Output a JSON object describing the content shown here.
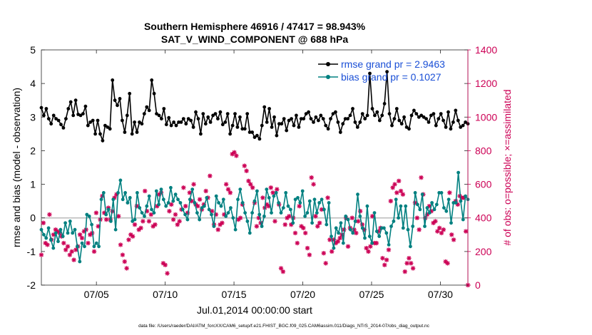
{
  "colors": {
    "rmse": "#000000",
    "bias": "#008080",
    "obs": "#cc0055",
    "zero_line": "#bbbbbb",
    "legend_text": "#1a4fd6"
  },
  "chart_data": {
    "type": "line",
    "title_line1": "Southern Hemisphere 46916 / 47417 = 98.943%",
    "title_line2": "SAT_V_WIND_COMPONENT @ 688 hPa",
    "xlabel": "Jul.01,2014 00:00:00 start",
    "ylabel_left": "rmse and bias (model - observation)",
    "ylabel_right": "# of obs: o=possible; ×=assimilated",
    "footer": "data file: /Users/raeder/DAI/ATM_forcXX/CAM6_setup/f.e21.FHIST_BGC.f09_025.CAM6assim.011/Diags_NTrS_2014-07/obs_diag_output.nc",
    "xlim": [
      1,
      32
    ],
    "ylim_left": [
      -2,
      5
    ],
    "ylim_right": [
      0,
      1400
    ],
    "xticks": [
      5,
      10,
      15,
      20,
      25,
      30
    ],
    "xtick_labels": [
      "07/05",
      "07/10",
      "07/15",
      "07/20",
      "07/25",
      "07/30"
    ],
    "yticks_left": [
      -2,
      -1,
      0,
      1,
      2,
      3,
      4,
      5
    ],
    "yticks_right": [
      0,
      200,
      400,
      600,
      800,
      1000,
      1200,
      1400
    ],
    "legend": [
      {
        "key": "rmse",
        "label": "rmse grand pr = 2.9463"
      },
      {
        "key": "bias",
        "label": "bias grand pr = 0.1027"
      }
    ],
    "rmse": [
      3.28,
      3.05,
      3.25,
      2.95,
      2.8,
      3.05,
      2.95,
      2.9,
      2.78,
      2.68,
      2.95,
      3.25,
      3.45,
      3.05,
      3.5,
      3.08,
      3.05,
      3.1,
      3.32,
      2.75,
      2.85,
      2.9,
      2.5,
      2.9,
      2.5,
      2.3,
      2.75,
      2.7,
      2.65,
      4.1,
      3.5,
      3.35,
      3.55,
      2.9,
      2.55,
      3.05,
      3.7,
      2.5,
      2.85,
      2.55,
      2.85,
      2.8,
      3.1,
      3.3,
      3.2,
      4.1,
      3.7,
      3.1,
      3.05,
      2.95,
      3.25,
      2.78,
      2.98,
      2.75,
      2.85,
      2.75,
      2.85,
      2.85,
      2.95,
      2.8,
      2.95,
      2.9,
      2.7,
      3.15,
      2.95,
      2.5,
      3.1,
      2.8,
      3.0,
      2.85,
      3.05,
      3.1,
      2.95,
      3.15,
      2.78,
      2.85,
      3.1,
      2.5,
      2.75,
      3.1,
      2.7,
      3.0,
      2.65,
      2.65,
      3.1,
      2.55,
      2.55,
      2.4,
      2.45,
      2.35,
      2.75,
      3.3,
      2.85,
      3.25,
      2.7,
      3.0,
      2.45,
      2.8,
      2.8,
      2.95,
      2.6,
      2.9,
      2.95,
      2.75,
      3.05,
      2.7,
      2.95,
      2.95,
      3.1,
      3.15,
      2.95,
      2.85,
      3.0,
      2.9,
      3.05,
      2.95,
      2.75,
      2.65,
      2.95,
      3.1,
      3.15,
      2.85,
      2.55,
      2.8,
      2.95,
      2.95,
      3.05,
      3.25,
      2.85,
      2.7,
      2.85,
      3.1,
      2.95,
      3.05,
      4.3,
      3.25,
      3.05,
      3.15,
      2.9,
      3.05,
      3.4,
      4.35,
      3.1,
      2.75,
      2.95,
      3.25,
      2.9,
      2.8,
      3.0,
      2.7,
      2.65,
      3.05,
      3.2,
      3.1,
      3.0,
      3.05,
      3.0,
      2.95,
      2.85,
      3.05,
      3.1,
      2.75,
      2.95,
      3.1,
      2.9,
      2.7,
      3.15,
      2.65,
      2.85,
      3.2,
      2.9,
      2.7,
      2.75,
      2.85,
      2.8
    ],
    "bias": [
      -0.35,
      -0.5,
      -0.6,
      -0.3,
      -0.65,
      -0.9,
      -0.45,
      -0.7,
      -0.35,
      -0.55,
      -0.15,
      -0.45,
      -0.1,
      -0.45,
      -0.35,
      -0.85,
      -1.3,
      -0.75,
      -0.85,
      0.1,
      0.05,
      -0.2,
      -0.85,
      -0.75,
      -0.85,
      0.55,
      0.75,
      0.1,
      0.25,
      -0.1,
      0.55,
      -0.35,
      0.75,
      1.12,
      0.55,
      0.75,
      0.45,
      0.6,
      -0.1,
      -0.05,
      0.75,
      0.3,
      0.15,
      0.05,
      0.35,
      0.65,
      0.25,
      0.15,
      0.8,
      0.4,
      0.85,
      0.55,
      0.35,
      0.45,
      0.9,
      0.5,
      0.7,
      0.55,
      0.45,
      0.25,
      0.1,
      -0.05,
      0.55,
      0.85,
      0.45,
      0.15,
      -0.05,
      0.3,
      0.35,
      0.6,
      0.25,
      0.1,
      -0.25,
      0.65,
      0.45,
      0.35,
      0.55,
      0.05,
      0.15,
      0.3,
      0.0,
      -0.35,
      0.55,
      0.85,
      0.45,
      0.15,
      -0.1,
      -0.45,
      0.15,
      0.5,
      0.8,
      0.1,
      -0.25,
      0.05,
      0.85,
      0.6,
      0.15,
      0.65,
      0.75,
      0.45,
      0.15,
      0.3,
      0.75,
      0.35,
      0.25,
      -0.15,
      0.55,
      0.6,
      0.45,
      0.8,
      0.05,
      0.15,
      0.5,
      -0.15,
      0.55,
      0.15,
      0.45,
      0.55,
      0.25,
      -0.2,
      0.45,
      -0.55,
      -0.9,
      -0.3,
      -0.45,
      -0.15,
      -0.75,
      0.05,
      -0.05,
      -0.35,
      -0.45,
      -0.1,
      0.7,
      0.05,
      -0.3,
      -0.6,
      0.35,
      -0.55,
      -0.75,
      0.15,
      -0.4,
      -0.55,
      -0.3,
      -0.3,
      -0.45,
      -0.8,
      -0.25,
      -0.1,
      0.55,
      0.0,
      0.35,
      -0.3,
      0.35,
      -0.35,
      -0.85,
      -0.25,
      0.75,
      0.4,
      0.25,
      0.7,
      -0.25,
      0.3,
      0.15,
      0.45,
      0.25,
      0.4,
      0.75,
      0.75,
      0.3,
      0.2,
      0.55,
      -0.15,
      0.45,
      0.45,
      1.35,
      0.5,
      -0.05,
      0.65,
      0.55
    ],
    "obs_used": [
      180,
      370,
      250,
      240,
      420,
      270,
      300,
      330,
      320,
      310,
      290,
      250,
      210,
      230,
      180,
      200,
      150,
      210,
      230,
      300,
      280,
      320,
      330,
      250,
      300,
      310,
      200,
      430,
      350,
      390,
      530,
      430,
      390,
      460,
      390,
      440,
      520,
      540,
      410,
      240,
      180,
      140,
      100,
      270,
      300,
      290,
      360,
      470,
      330,
      340,
      380,
      560,
      440,
      380,
      420,
      350,
      360,
      470,
      540,
      550,
      130,
      120,
      70,
      440,
      480,
      390,
      420,
      360,
      380,
      450,
      580,
      470,
      430,
      550,
      500,
      600,
      480,
      470,
      510,
      450,
      480,
      560,
      520,
      650,
      440,
      360,
      420,
      330,
      360,
      370,
      420,
      600,
      570,
      550,
      780,
      790,
      770,
      390,
      400,
      480,
      710,
      680,
      620,
      600,
      580,
      490,
      350,
      400,
      370,
      520,
      460,
      480,
      470,
      580,
      550,
      380,
      570,
      480,
      100,
      80,
      360,
      400,
      410,
      360,
      400,
      310,
      250,
      470,
      350,
      340,
      310,
      220,
      180,
      640,
      600,
      410,
      350,
      370,
      450,
      190,
      130,
      520,
      270,
      200,
      270,
      250,
      260,
      280,
      300,
      330,
      400,
      230,
      340,
      400,
      330,
      310,
      380,
      440,
      360,
      330,
      220,
      200,
      230,
      410,
      250,
      250,
      320,
      340,
      160,
      120,
      150,
      210,
      500,
      580,
      600,
      550,
      620,
      560,
      540,
      80,
      130,
      160,
      130,
      100,
      490,
      400,
      330,
      640,
      540,
      400,
      420,
      470,
      440,
      370,
      380,
      320,
      340,
      310,
      330,
      140,
      130,
      550,
      300,
      270,
      500,
      480,
      530,
      520,
      520,
      320,
      0
    ]
  }
}
